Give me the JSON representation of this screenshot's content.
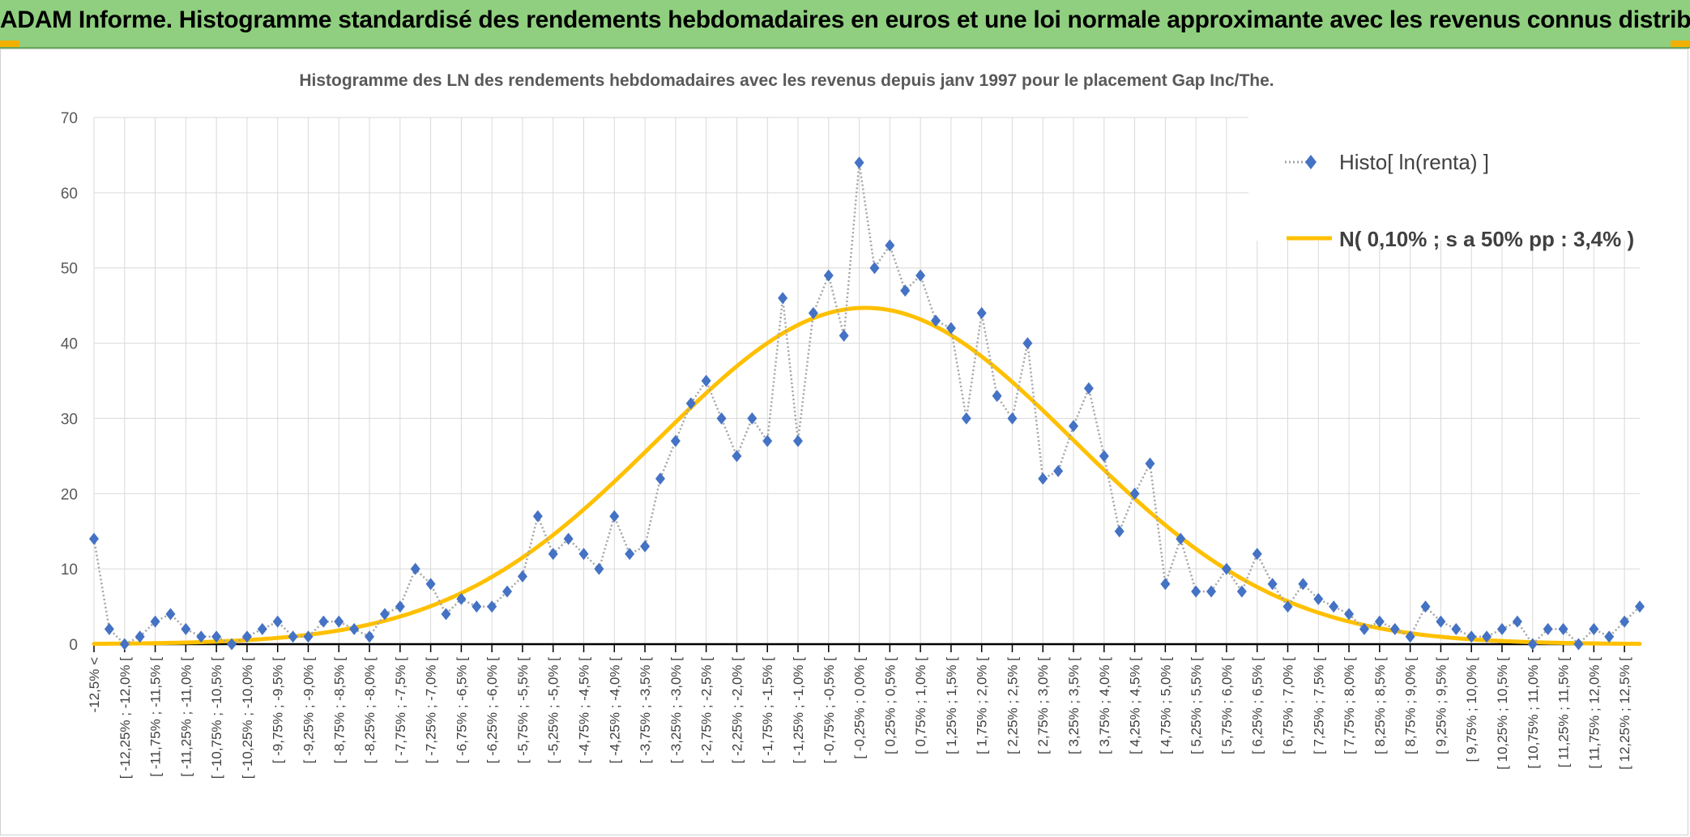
{
  "banner": {
    "title": "ADAM Informe. Histogramme standardisé des rendements hebdomadaires en euros et une loi normale approximante avec les revenus connus distribués"
  },
  "chart_data": {
    "type": "line",
    "title": "Histogramme des LN des rendements hebdomadaires avec les revenus depuis janv 1997 pour le placement Gap Inc/The.",
    "xlabel": "",
    "ylabel": "",
    "ylim": [
      0,
      70
    ],
    "yticks": [
      0,
      10,
      20,
      30,
      40,
      50,
      60,
      70
    ],
    "grid": true,
    "legend_position": "top-right",
    "colors": {
      "histo": "#4472c4",
      "histo_line": "#a5a5a5",
      "normal": "#ffc000",
      "grid": "#d9d9d9"
    },
    "tick_labels": [
      "-12,5% <",
      "[ -12,25% ; -12,0% [",
      "[ -11,75% ; -11,5% [",
      "[ -11,25% ; -11,0% [",
      "[ -10,75% ; -10,5% [",
      "[ -10,25% ; -10,0% [",
      "[ -9,75% ; -9,5% [",
      "[ -9,25% ; -9,0% [",
      "[ -8,75% ; -8,5% [",
      "[ -8,25% ; -8,0% [",
      "[ -7,75% ; -7,5% [",
      "[ -7,25% ; -7,0% [",
      "[ -6,75% ; -6,5% [",
      "[ -6,25% ; -6,0% [",
      "[ -5,75% ; -5,5% [",
      "[ -5,25% ; -5,0% [",
      "[ -4,75% ; -4,5% [",
      "[ -4,25% ; -4,0% [",
      "[ -3,75% ; -3,5% [",
      "[ -3,25% ; -3,0% [",
      "[ -2,75% ; -2,5% [",
      "[ -2,25% ; -2,0% [",
      "[ -1,75% ; -1,5% [",
      "[ -1,25% ; -1,0% [",
      "[ -0,75% ; -0,5% [",
      "[ -0,25% ; 0,0% [",
      "[ 0,25% ; 0,5% [",
      "[ 0,75% ; 1,0% [",
      "[ 1,25% ; 1,5% [",
      "[ 1,75% ; 2,0% [",
      "[ 2,25% ; 2,5% [",
      "[ 2,75% ; 3,0% [",
      "[ 3,25% ; 3,5% [",
      "[ 3,75% ; 4,0% [",
      "[ 4,25% ; 4,5% [",
      "[ 4,75% ; 5,0% [",
      "[ 5,25% ; 5,5% [",
      "[ 5,75% ; 6,0% [",
      "[ 6,25% ; 6,5% [",
      "[ 6,75% ; 7,0% [",
      "[ 7,25% ; 7,5% [",
      "[ 7,75% ; 8,0% [",
      "[ 8,25% ; 8,5% [",
      "[ 8,75% ; 9,0% [",
      "[ 9,25% ; 9,5% [",
      "[ 9,75% ; 10,0% [",
      "[ 10,25% ; 10,5% [",
      "[ 10,75% ; 11,0% [",
      "[ 11,25% ; 11,5% [",
      "[ 11,75% ; 12,0% [",
      "[ 12,25% ; 12,5% ["
    ],
    "series": [
      {
        "name": "Histo[ ln(renta) ]",
        "style": "dotted line with diamond markers",
        "values": [
          14,
          2,
          0,
          1,
          3,
          4,
          2,
          1,
          1,
          0,
          1,
          2,
          3,
          1,
          1,
          3,
          3,
          2,
          1,
          4,
          5,
          10,
          8,
          4,
          6,
          5,
          5,
          7,
          9,
          17,
          12,
          14,
          12,
          10,
          17,
          12,
          13,
          22,
          27,
          32,
          35,
          30,
          25,
          30,
          27,
          46,
          27,
          44,
          49,
          41,
          64,
          50,
          53,
          47,
          49,
          43,
          42,
          30,
          44,
          33,
          30,
          40,
          22,
          23,
          29,
          34,
          25,
          15,
          20,
          24,
          8,
          14,
          7,
          7,
          10,
          7,
          12,
          8,
          5,
          8,
          6,
          5,
          4,
          2,
          3,
          2,
          1,
          5,
          3,
          2,
          1,
          1,
          2,
          3,
          0,
          2,
          2,
          0,
          2,
          1,
          3,
          5
        ]
      },
      {
        "name": "N( 0,10% ; s a 50% pp : 3,4% )",
        "style": "smooth line",
        "mean": 0.1,
        "sd": 3.4,
        "peak": 44.7
      }
    ],
    "x_start": -12.5,
    "x_step": 0.25
  }
}
